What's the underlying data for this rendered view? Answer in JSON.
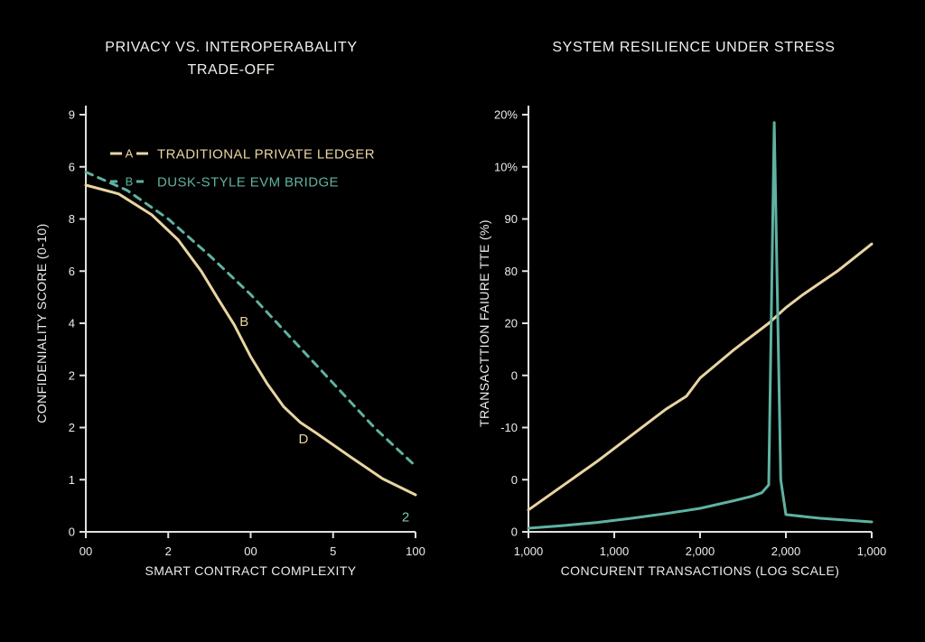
{
  "page": {
    "background": "#000000",
    "text_color": "#ededed",
    "axis_color": "#e2e0db"
  },
  "chart_data": [
    {
      "type": "line",
      "title": "PRIVACY VS. INTEROPERABALITY TRADE-OFF",
      "xlabel": "SMART CONTRACT COMPLEXITY",
      "ylabel": "CONFIDENIALITY SCORE (0-10)",
      "x_tick_labels": [
        "00",
        "2",
        "00",
        "5",
        "100"
      ],
      "y_tick_labels_bottom_to_top": [
        "0",
        "1",
        "2",
        "2",
        "4",
        "6",
        "8",
        "6",
        "9"
      ],
      "y_scale_note": "grid units, bottom tick = 0, top tick = 8",
      "x_scale_note": "percent of axis width 0-100",
      "grid": "off",
      "legend_position": "top-left-inside",
      "legend": [
        {
          "id": "A",
          "label": "TRADITIONAL PRIVATE LEDGER",
          "color": "#e9d5a2",
          "style": "solid"
        },
        {
          "id": "B",
          "label": "DUSK-STYLE EVM BRIDGE",
          "color": "#5fb2a1",
          "style": "dashed"
        }
      ],
      "series": [
        {
          "name": "TRADITIONAL PRIVATE LEDGER",
          "color": "#e9d5a2",
          "dash": "solid",
          "points": [
            [
              0,
              6.65
            ],
            [
              10,
              6.48
            ],
            [
              20,
              6.08
            ],
            [
              28,
              5.6
            ],
            [
              35,
              5.0
            ],
            [
              40,
              4.48
            ],
            [
              45,
              3.97
            ],
            [
              50,
              3.36
            ],
            [
              55,
              2.84
            ],
            [
              60,
              2.4
            ],
            [
              65,
              2.1
            ],
            [
              70,
              1.89
            ],
            [
              80,
              1.45
            ],
            [
              90,
              1.02
            ],
            [
              100,
              0.71
            ]
          ]
        },
        {
          "name": "DUSK-STYLE EVM BRIDGE",
          "color": "#5fb2a1",
          "dash": "dashed",
          "points": [
            [
              0,
              6.9
            ],
            [
              12.5,
              6.55
            ],
            [
              25,
              6.0
            ],
            [
              37.5,
              5.3
            ],
            [
              50,
              4.55
            ],
            [
              62.5,
              3.7
            ],
            [
              75,
              2.85
            ],
            [
              87.5,
              2.0
            ],
            [
              100,
              1.26
            ]
          ]
        }
      ],
      "annotations": [
        {
          "text": "B",
          "x": 48,
          "y": 3.95,
          "color": "#e9d5a2"
        },
        {
          "text": "D",
          "x": 66,
          "y": 1.7,
          "color": "#e9d5a2"
        },
        {
          "text": "2",
          "x": 97,
          "y": 0.2,
          "color": "#7fc4b4"
        }
      ]
    },
    {
      "type": "line",
      "title": "SYSTEM RESILIENCE UNDER STRESS",
      "xlabel": "CONCURENT TRANSACTIONS (LOG SCALE)",
      "ylabel": "TRANSACTTION FAIURE TTE (%)",
      "x_tick_labels": [
        "1,000",
        "1,000",
        "2,000",
        "2,000",
        "1,000"
      ],
      "y_tick_labels_bottom_to_top": [
        "0",
        "0",
        "-10",
        "0",
        "20",
        "80",
        "90",
        "10%",
        "20%"
      ],
      "y_scale_note": "grid units, bottom tick = 0, top tick = 8",
      "x_scale_note": "percent of axis width 0-100",
      "grid": "off",
      "legend_position": "none",
      "legend": [],
      "series": [
        {
          "name": "series-tan",
          "color": "#e9d5a2",
          "dash": "solid",
          "points": [
            [
              0,
              0.42
            ],
            [
              20,
              1.35
            ],
            [
              40,
              2.35
            ],
            [
              46,
              2.6
            ],
            [
              50,
              2.95
            ],
            [
              60,
              3.5
            ],
            [
              70,
              4.0
            ],
            [
              75,
              4.3
            ],
            [
              80,
              4.55
            ],
            [
              90,
              5.0
            ],
            [
              100,
              5.52
            ]
          ]
        },
        {
          "name": "series-teal",
          "color": "#5fb2a1",
          "dash": "solid",
          "points": [
            [
              0,
              0.07
            ],
            [
              10,
              0.12
            ],
            [
              20,
              0.18
            ],
            [
              30,
              0.26
            ],
            [
              40,
              0.35
            ],
            [
              50,
              0.45
            ],
            [
              60,
              0.6
            ],
            [
              65,
              0.68
            ],
            [
              68,
              0.75
            ],
            [
              70,
              0.9
            ],
            [
              71.6,
              7.85
            ],
            [
              73.5,
              1.0
            ],
            [
              75,
              0.33
            ],
            [
              85,
              0.26
            ],
            [
              100,
              0.19
            ]
          ]
        }
      ],
      "annotations": []
    }
  ]
}
